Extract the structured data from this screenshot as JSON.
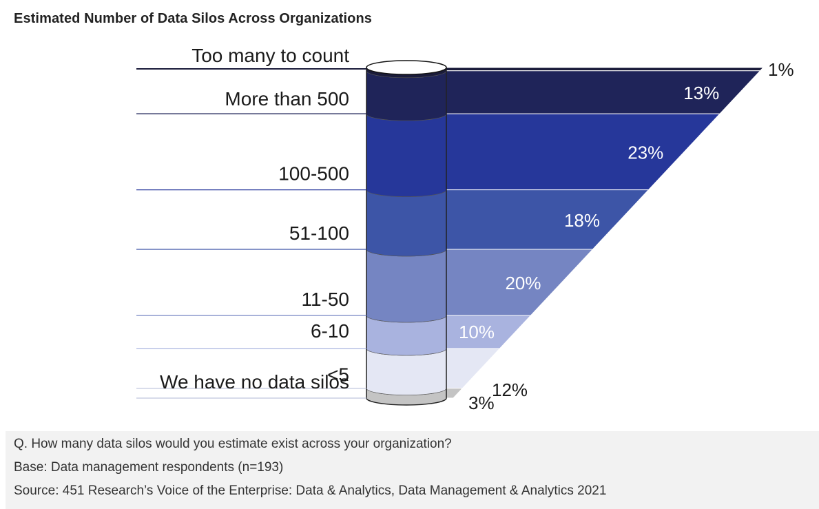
{
  "chart_data": {
    "type": "bar",
    "title": "Estimated Number of Data Silos Across Organizations",
    "categories": [
      "Too many to count",
      "More than 500",
      "100-500",
      "51-100",
      "11-50",
      "6-10",
      "<5",
      "We have no data silos"
    ],
    "values": [
      1,
      13,
      23,
      18,
      20,
      10,
      12,
      3
    ],
    "labels": [
      "1%",
      "13%",
      "23%",
      "18%",
      "20%",
      "10%",
      "12%",
      "3%"
    ],
    "unit": "%",
    "colors": [
      "#1a1b3a",
      "#1f2459",
      "#26379a",
      "#3d55a7",
      "#7585c2",
      "#a9b3df",
      "#e4e7f4",
      "#c4c4c4"
    ]
  },
  "footer": {
    "question": "Q. How many data silos would you estimate exist across your organization?",
    "base": "Base: Data management respondents (n=193)",
    "source": "Source: 451 Research’s Voice of the Enterprise: Data & Analytics, Data Management & Analytics 2021"
  }
}
